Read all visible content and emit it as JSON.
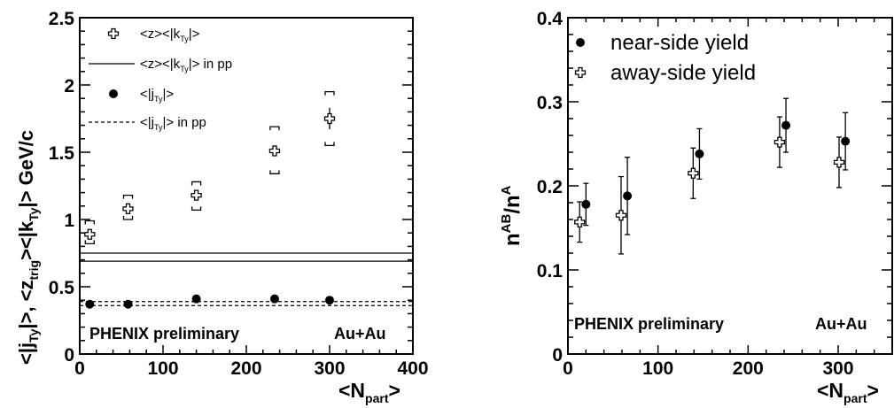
{
  "chart_data": [
    {
      "type": "scatter",
      "title": "",
      "xlabel_parts": [
        "<N",
        "part",
        ">"
      ],
      "ylabel_parts": [
        "<|j",
        "Ty",
        "|>,  <z",
        "trig",
        "><|k",
        "Ty",
        "|>  GeV/c"
      ],
      "xlim": [
        0,
        400
      ],
      "ylim": [
        0,
        2.5
      ],
      "x_ticks": [
        0,
        100,
        200,
        300,
        400
      ],
      "y_ticks": [
        0,
        0.5,
        1,
        1.5,
        2,
        2.5
      ],
      "x_tick_labels": [
        "0",
        "100",
        "200",
        "300",
        "400"
      ],
      "y_tick_labels": [
        "0",
        "0.5",
        "1",
        "1.5",
        "2",
        "2.5"
      ],
      "legend_position": "top-left",
      "legend": [
        {
          "parts": [
            "<z><|k",
            "Ty",
            "|>"
          ],
          "kind": "cross"
        },
        {
          "parts": [
            "<z><|k",
            "Ty",
            "|> in pp"
          ],
          "kind": "solid-band"
        },
        {
          "parts": [
            "<|j",
            "Ty",
            "|>"
          ],
          "kind": "dot"
        },
        {
          "parts": [
            "<|j",
            "Ty",
            "|> in pp"
          ],
          "kind": "dashed-band"
        }
      ],
      "series": [
        {
          "marker": "cross",
          "x": [
            12,
            58,
            140,
            234,
            300
          ],
          "y": [
            0.89,
            1.08,
            1.18,
            1.51,
            1.75
          ],
          "err": [
            0.03,
            0.03,
            0.035,
            0.04,
            0.08
          ],
          "sys": [
            [
              0.82,
              0.99
            ],
            [
              1.0,
              1.18
            ],
            [
              1.07,
              1.28
            ],
            [
              1.34,
              1.69
            ],
            [
              1.55,
              1.95
            ]
          ]
        },
        {
          "marker": "dot",
          "x": [
            12,
            58,
            140,
            234,
            300
          ],
          "y": [
            0.37,
            0.37,
            0.41,
            0.41,
            0.4
          ],
          "err": [
            0.01,
            0.01,
            0.01,
            0.01,
            0.01
          ]
        }
      ],
      "bands": [
        {
          "style": "solid",
          "y": [
            0.69,
            0.75
          ]
        },
        {
          "style": "dashed",
          "y": [
            0.36,
            0.39
          ]
        }
      ],
      "annotations": [
        "PHENIX preliminary",
        "Au+Au"
      ]
    },
    {
      "type": "scatter",
      "title": "",
      "xlabel_parts": [
        "<N",
        "part",
        ">"
      ],
      "ylabel_parts": [
        "n",
        "AB",
        "/n",
        "A"
      ],
      "xlim": [
        0,
        360
      ],
      "ylim": [
        0,
        0.4
      ],
      "x_ticks": [
        0,
        100,
        200,
        300
      ],
      "y_ticks": [
        0,
        0.1,
        0.2,
        0.3,
        0.4
      ],
      "x_tick_labels": [
        "0",
        "100",
        "200",
        "300"
      ],
      "y_tick_labels": [
        "0",
        "0.1",
        "0.2",
        "0.3",
        "0.4"
      ],
      "legend_position": "top-left",
      "legend": [
        {
          "parts": [
            "near-side yield"
          ],
          "kind": "dot"
        },
        {
          "parts": [
            "away-side yield"
          ],
          "kind": "cross"
        }
      ],
      "series": [
        {
          "marker": "dot",
          "name": "near-side yield",
          "x": [
            20,
            66,
            146,
            242,
            308
          ],
          "y": [
            0.178,
            0.188,
            0.238,
            0.272,
            0.253
          ],
          "err": [
            0.025,
            0.046,
            0.03,
            0.032,
            0.034
          ]
        },
        {
          "marker": "cross",
          "name": "away-side yield",
          "x": [
            13,
            59,
            139,
            235,
            301
          ],
          "y": [
            0.157,
            0.165,
            0.215,
            0.252,
            0.228
          ],
          "err": [
            0.024,
            0.046,
            0.03,
            0.03,
            0.03
          ]
        }
      ],
      "annotations": [
        "PHENIX preliminary",
        "Au+Au"
      ]
    }
  ]
}
